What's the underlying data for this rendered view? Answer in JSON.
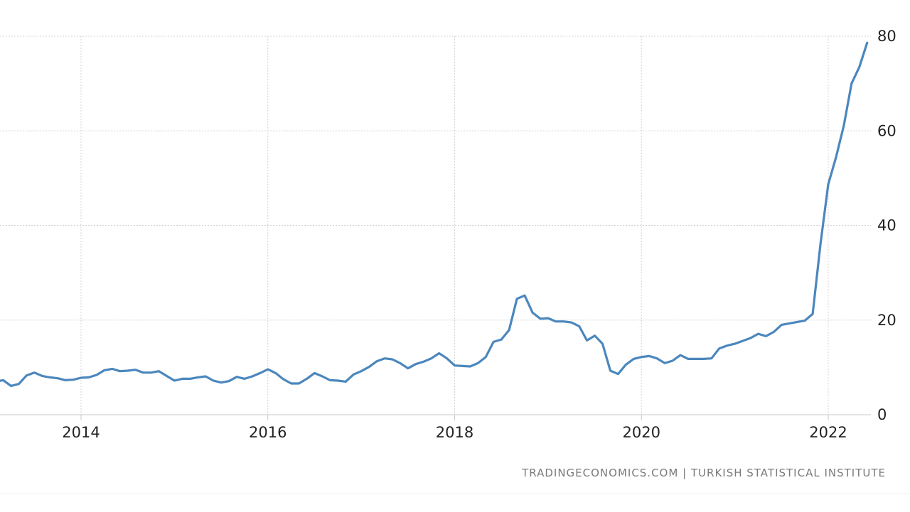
{
  "chart_data": {
    "type": "line",
    "title": "",
    "xlabel": "",
    "ylabel": "",
    "ylim": [
      0,
      80
    ],
    "xlim": [
      "2013-01",
      "2022-06"
    ],
    "y_ticks": [
      "0",
      "20",
      "40",
      "60",
      "80"
    ],
    "x_ticks": [
      "2014",
      "2016",
      "2018",
      "2020",
      "2022"
    ],
    "grid": true,
    "legend": "none",
    "y_axis_side": "right",
    "line_color": "#4b87bd",
    "source_text": "TRADINGECONOMICS.COM  |  TURKISH STATISTICAL INSTITUTE",
    "series": [
      {
        "x": [
          "2013-01",
          "2013-02",
          "2013-03",
          "2013-04",
          "2013-05",
          "2013-06",
          "2013-07",
          "2013-08",
          "2013-09",
          "2013-10",
          "2013-11",
          "2013-12",
          "2014-01",
          "2014-02",
          "2014-03",
          "2014-04",
          "2014-05",
          "2014-06",
          "2014-07",
          "2014-08",
          "2014-09",
          "2014-10",
          "2014-11",
          "2014-12",
          "2015-01",
          "2015-02",
          "2015-03",
          "2015-04",
          "2015-05",
          "2015-06",
          "2015-07",
          "2015-08",
          "2015-09",
          "2015-10",
          "2015-11",
          "2015-12",
          "2016-01",
          "2016-02",
          "2016-03",
          "2016-04",
          "2016-05",
          "2016-06",
          "2016-07",
          "2016-08",
          "2016-09",
          "2016-10",
          "2016-11",
          "2016-12",
          "2017-01",
          "2017-02",
          "2017-03",
          "2017-04",
          "2017-05",
          "2017-06",
          "2017-07",
          "2017-08",
          "2017-09",
          "2017-10",
          "2017-11",
          "2017-12",
          "2018-01",
          "2018-02",
          "2018-03",
          "2018-04",
          "2018-05",
          "2018-06",
          "2018-07",
          "2018-08",
          "2018-09",
          "2018-10",
          "2018-11",
          "2018-12",
          "2019-01",
          "2019-02",
          "2019-03",
          "2019-04",
          "2019-05",
          "2019-06",
          "2019-07",
          "2019-08",
          "2019-09",
          "2019-10",
          "2019-11",
          "2019-12",
          "2020-01",
          "2020-02",
          "2020-03",
          "2020-04",
          "2020-05",
          "2020-06",
          "2020-07",
          "2020-08",
          "2020-09",
          "2020-10",
          "2020-11",
          "2020-12",
          "2021-01",
          "2021-02",
          "2021-03",
          "2021-04",
          "2021-05",
          "2021-06",
          "2021-07",
          "2021-08",
          "2021-09",
          "2021-10",
          "2021-11",
          "2021-12",
          "2022-01",
          "2022-02",
          "2022-03",
          "2022-04",
          "2022-05",
          "2022-06"
        ],
        "values": [
          7.3,
          7.0,
          7.3,
          6.1,
          6.5,
          8.3,
          8.9,
          8.2,
          7.9,
          7.7,
          7.3,
          7.4,
          7.8,
          7.9,
          8.4,
          9.4,
          9.7,
          9.2,
          9.3,
          9.5,
          8.9,
          8.9,
          9.2,
          8.2,
          7.2,
          7.6,
          7.6,
          7.9,
          8.1,
          7.2,
          6.8,
          7.1,
          8.0,
          7.6,
          8.1,
          8.8,
          9.6,
          8.8,
          7.5,
          6.6,
          6.6,
          7.6,
          8.8,
          8.1,
          7.3,
          7.2,
          7.0,
          8.5,
          9.2,
          10.1,
          11.3,
          11.9,
          11.7,
          10.9,
          9.8,
          10.7,
          11.2,
          11.9,
          13.0,
          11.9,
          10.4,
          10.3,
          10.2,
          10.9,
          12.2,
          15.4,
          15.9,
          17.9,
          24.5,
          25.2,
          21.6,
          20.3,
          20.4,
          19.7,
          19.7,
          19.5,
          18.7,
          15.7,
          16.7,
          15.0,
          9.3,
          8.6,
          10.6,
          11.8,
          12.2,
          12.4,
          11.9,
          10.9,
          11.4,
          12.6,
          11.8,
          11.8,
          11.8,
          11.9,
          14.0,
          14.6,
          15.0,
          15.6,
          16.2,
          17.1,
          16.6,
          17.5,
          19.0,
          19.3,
          19.6,
          19.9,
          21.3,
          36.1,
          48.7,
          54.4,
          61.1,
          70.0,
          73.5,
          78.6
        ]
      }
    ]
  }
}
